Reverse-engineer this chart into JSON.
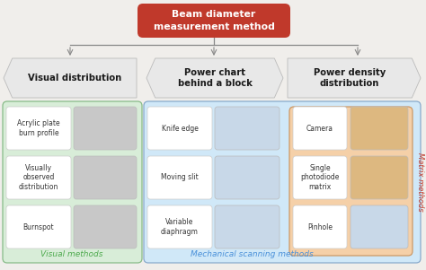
{
  "title": "Beam diameter\nmeasurement method",
  "title_box_color": "#c0392b",
  "title_text_color": "#ffffff",
  "bg_color": "#f0eeeb",
  "categories": [
    "Visual distribution",
    "Power chart\nbehind a block",
    "Power density\ndistribution"
  ],
  "cat_box_color": "#e8e8e8",
  "cat_text_color": "#1a1a1a",
  "visual_items": [
    "Acrylic plate\nburn profile",
    "Visually\nobserved\ndistribution",
    "Burnspot"
  ],
  "mechanical_items": [
    "Knife edge",
    "Moving slit",
    "Variable\ndiaphragm"
  ],
  "power_density_items": [
    "Camera",
    "Single\nphotodiode\nmatrix",
    "Pinhole"
  ],
  "visual_bg": "#d8edd8",
  "visual_label": "Visual methods",
  "visual_label_color": "#4daa4d",
  "mech_bg": "#d0e8f8",
  "mech_label": "Mechanical scanning methods",
  "mech_label_color": "#4a90d9",
  "matrix_bg": "#f5d0a8",
  "matrix_label": "Matrix methods",
  "matrix_label_color": "#c0392b",
  "item_box_color": "#ffffff",
  "img_gray": "#c8c8c8",
  "img_blue": "#c8d8e8",
  "img_orange": "#ddb880",
  "arrow_color": "#888888"
}
